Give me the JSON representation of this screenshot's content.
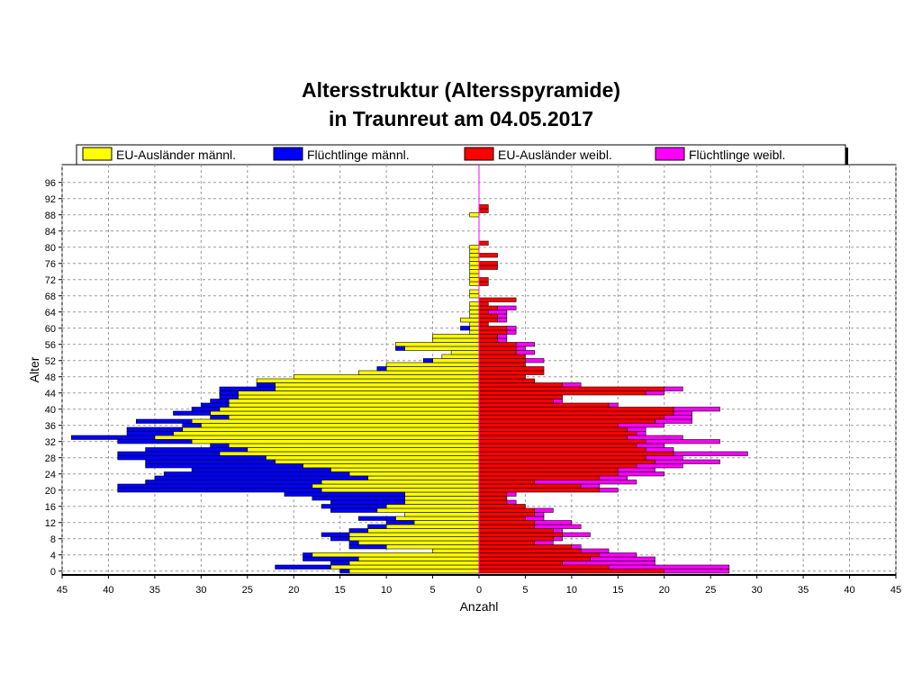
{
  "chart_data": {
    "type": "bar",
    "orientation": "horizontal-pyramid",
    "title": "Altersstruktur (Altersspyramide)",
    "subtitle": "in Traunreut am 04.05.2017",
    "xlabel": "Anzahl",
    "ylabel": "Alter",
    "xlim": [
      -45,
      45
    ],
    "ylim": [
      0,
      99
    ],
    "x_ticks": [
      -45,
      -40,
      -35,
      -30,
      -25,
      -20,
      -15,
      -10,
      -5,
      0,
      5,
      10,
      15,
      20,
      25,
      30,
      35,
      40,
      45
    ],
    "x_tick_labels": [
      "45",
      "40",
      "35",
      "30",
      "25",
      "20",
      "15",
      "10",
      "5",
      "0",
      "5",
      "10",
      "15",
      "20",
      "25",
      "30",
      "35",
      "40",
      "45"
    ],
    "y_ticks": [
      0,
      4,
      8,
      12,
      16,
      20,
      24,
      28,
      32,
      36,
      40,
      44,
      48,
      52,
      56,
      60,
      64,
      68,
      72,
      76,
      80,
      84,
      88,
      92,
      96
    ],
    "y_tick_labels": [
      "0",
      "4",
      "8",
      "12",
      "16",
      "20",
      "24",
      "28",
      "32",
      "36",
      "40",
      "44",
      "48",
      "52",
      "56",
      "60",
      "64",
      "68",
      "72",
      "76",
      "80",
      "84",
      "88",
      "92",
      "96"
    ],
    "grid": true,
    "legend_position": "top",
    "ages": [
      0,
      1,
      2,
      3,
      4,
      5,
      6,
      7,
      8,
      9,
      10,
      11,
      12,
      13,
      14,
      15,
      16,
      17,
      18,
      19,
      20,
      21,
      22,
      23,
      24,
      25,
      26,
      27,
      28,
      29,
      30,
      31,
      32,
      33,
      34,
      35,
      36,
      37,
      38,
      39,
      40,
      41,
      42,
      43,
      44,
      45,
      46,
      47,
      48,
      49,
      50,
      51,
      52,
      53,
      54,
      55,
      56,
      57,
      58,
      59,
      60,
      61,
      62,
      63,
      64,
      65,
      66,
      67,
      68,
      69,
      70,
      71,
      72,
      73,
      74,
      75,
      76,
      77,
      78,
      79,
      80,
      81,
      82,
      83,
      84,
      85,
      86,
      87,
      88,
      89,
      90,
      91,
      92,
      93,
      94,
      95,
      96,
      97,
      98
    ],
    "series": [
      {
        "name": "EU-Ausländer männl.",
        "color": "#ffff00",
        "side": "left",
        "stack": "male",
        "values": [
          14,
          16,
          14,
          13,
          18,
          5,
          10,
          13,
          14,
          14,
          12,
          10,
          7,
          9,
          8,
          11,
          10,
          8,
          8,
          8,
          17,
          18,
          17,
          12,
          14,
          16,
          19,
          22,
          23,
          28,
          25,
          27,
          31,
          35,
          33,
          32,
          30,
          31,
          27,
          29,
          28,
          27,
          27,
          26,
          26,
          22,
          22,
          24,
          20,
          13,
          10,
          10,
          5,
          4,
          3,
          8,
          9,
          5,
          5,
          1,
          1,
          1,
          2,
          1,
          1,
          1,
          1,
          0,
          1,
          1,
          0,
          1,
          1,
          1,
          1,
          1,
          1,
          1,
          1,
          1,
          1,
          0,
          0,
          0,
          0,
          0,
          0,
          0,
          1,
          0,
          0,
          0,
          0,
          0,
          0,
          0,
          0,
          0,
          0
        ]
      },
      {
        "name": "Flüchtlinge männl.",
        "color": "#0000ff",
        "side": "left",
        "stack": "male",
        "values": [
          1,
          6,
          2,
          6,
          1,
          0,
          4,
          1,
          2,
          3,
          2,
          2,
          3,
          4,
          0,
          5,
          7,
          8,
          10,
          13,
          22,
          21,
          19,
          23,
          20,
          15,
          17,
          14,
          16,
          11,
          11,
          2,
          8,
          9,
          5,
          6,
          2,
          6,
          2,
          4,
          3,
          3,
          2,
          2,
          2,
          6,
          2,
          0,
          0,
          0,
          1,
          0,
          1,
          0,
          0,
          1,
          0,
          0,
          0,
          0,
          1,
          0,
          0,
          0,
          0,
          0,
          0,
          0,
          0,
          0,
          0,
          0,
          0,
          0,
          0,
          0,
          0,
          0,
          0,
          0,
          0,
          0,
          0,
          0,
          0,
          0,
          0,
          0,
          0,
          0,
          0,
          0,
          0,
          0,
          0,
          0,
          0,
          0,
          0
        ]
      },
      {
        "name": "EU-Ausländer weibl.",
        "color": "#ff0000",
        "side": "right",
        "stack": "female",
        "values": [
          20,
          14,
          9,
          12,
          13,
          11,
          10,
          6,
          8,
          9,
          8,
          6,
          6,
          5,
          6,
          6,
          5,
          3,
          3,
          3,
          13,
          11,
          6,
          13,
          15,
          15,
          17,
          19,
          18,
          21,
          18,
          17,
          18,
          16,
          17,
          16,
          15,
          19,
          20,
          21,
          21,
          14,
          8,
          9,
          18,
          20,
          9,
          6,
          5,
          7,
          7,
          5,
          5,
          5,
          4,
          4,
          4,
          2,
          2,
          3,
          3,
          1,
          2,
          2,
          1,
          2,
          1,
          4,
          0,
          0,
          0,
          1,
          1,
          0,
          0,
          2,
          2,
          0,
          2,
          0,
          0,
          1,
          0,
          0,
          0,
          0,
          0,
          0,
          0,
          1,
          1,
          0,
          0,
          0,
          0,
          0,
          0,
          0,
          0
        ]
      },
      {
        "name": "Flüchtlinge weibl.",
        "color": "#ff00ff",
        "side": "right",
        "stack": "female",
        "values": [
          7,
          13,
          10,
          7,
          4,
          3,
          1,
          2,
          1,
          3,
          1,
          5,
          4,
          2,
          1,
          2,
          0,
          1,
          0,
          1,
          2,
          2,
          11,
          3,
          5,
          4,
          5,
          7,
          4,
          8,
          3,
          3,
          8,
          6,
          1,
          2,
          5,
          4,
          3,
          2,
          5,
          1,
          1,
          0,
          2,
          2,
          2,
          0,
          0,
          0,
          0,
          0,
          2,
          0,
          2,
          1,
          2,
          1,
          1,
          1,
          1,
          0,
          1,
          1,
          2,
          2,
          0,
          0,
          0,
          0,
          0,
          0,
          0,
          0,
          0,
          0,
          0,
          0,
          0,
          0,
          0,
          0,
          0,
          0,
          0,
          0,
          0,
          0,
          0,
          0,
          0,
          0,
          0,
          0,
          0,
          0,
          0,
          0,
          0
        ]
      }
    ]
  }
}
